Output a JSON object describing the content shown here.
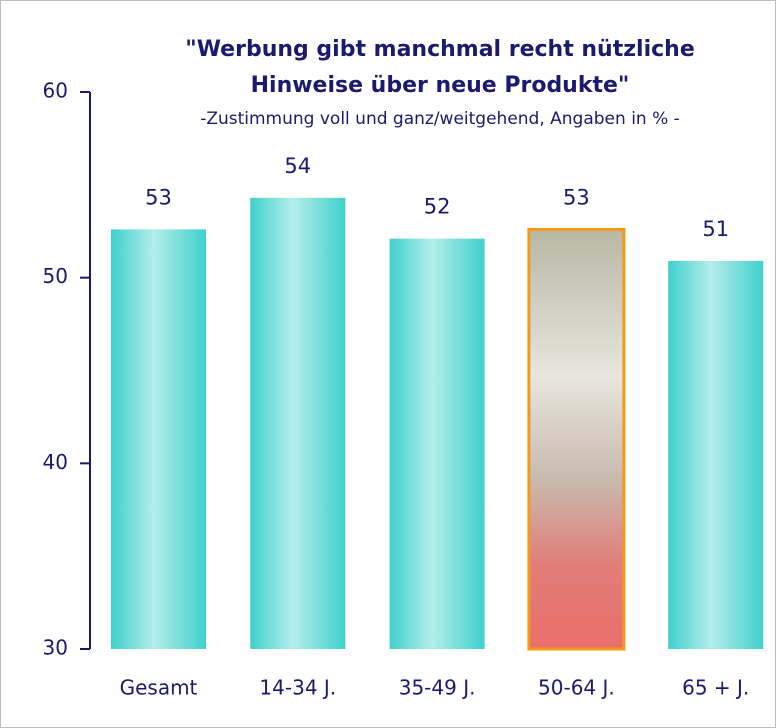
{
  "chart_data": {
    "type": "bar",
    "title": [
      "\"Werbung gibt manchmal recht nützliche",
      "Hinweise über neue Produkte\""
    ],
    "subtitle": "-Zustimmung voll und ganz/weitgehend, Angaben in % -",
    "categories": [
      "Gesamt",
      "14-34 J.",
      "35-49 J.",
      "50-64 J.",
      "65 + J."
    ],
    "values": [
      52.6,
      54.3,
      52.1,
      52.6,
      50.9
    ],
    "value_labels": [
      "53",
      "54",
      "52",
      "53",
      "51"
    ],
    "colors": [
      "#3fd0cc",
      "#3fd0cc",
      "#3fd0cc",
      "#d98a80",
      "#3fd0cc"
    ],
    "ylim": [
      30,
      60
    ],
    "yticks": [
      30,
      40,
      50,
      60
    ]
  }
}
